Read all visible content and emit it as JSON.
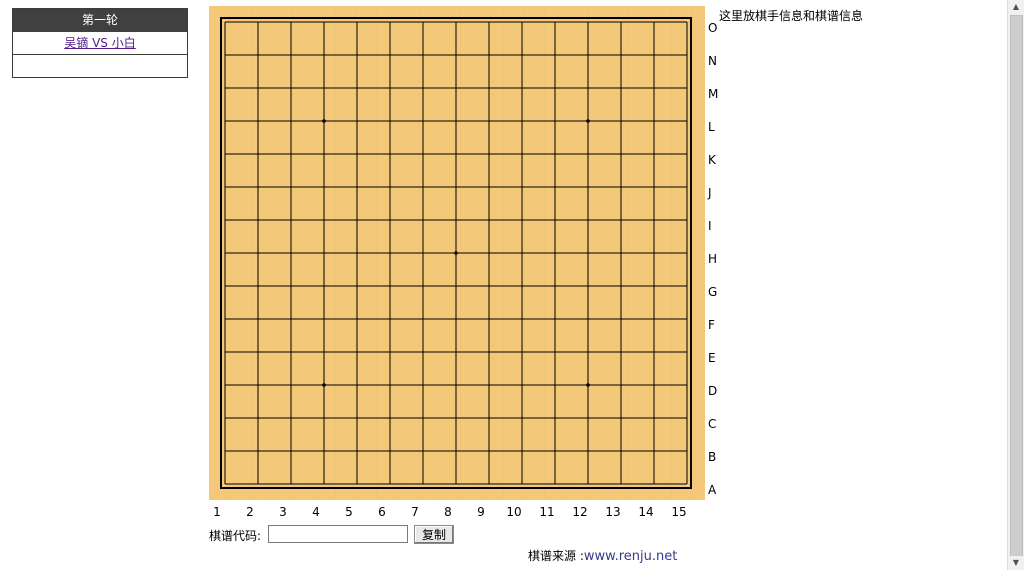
{
  "match_panel": {
    "round_title": "第一轮",
    "matches": [
      {
        "label": "吴镝 VS 小白"
      }
    ]
  },
  "board": {
    "size": 15,
    "wood_color": "#f4c97a",
    "line_color": "#000000",
    "row_labels": [
      "O",
      "N",
      "M",
      "L",
      "K",
      "J",
      "I",
      "H",
      "G",
      "F",
      "E",
      "D",
      "C",
      "B",
      "A"
    ],
    "col_labels": [
      "1",
      "2",
      "3",
      "4",
      "5",
      "6",
      "7",
      "8",
      "9",
      "10",
      "11",
      "12",
      "13",
      "14",
      "15"
    ],
    "star_points": [
      [
        "4",
        "L"
      ],
      [
        "12",
        "L"
      ],
      [
        "8",
        "H"
      ],
      [
        "4",
        "D"
      ],
      [
        "12",
        "D"
      ]
    ]
  },
  "info": {
    "text": "这里放棋手信息和棋谱信息"
  },
  "code": {
    "label": "棋谱代码:",
    "value": "",
    "copy_label": "复制"
  },
  "source": {
    "prefix": "棋谱来源 :",
    "url": "www.renju.net"
  }
}
